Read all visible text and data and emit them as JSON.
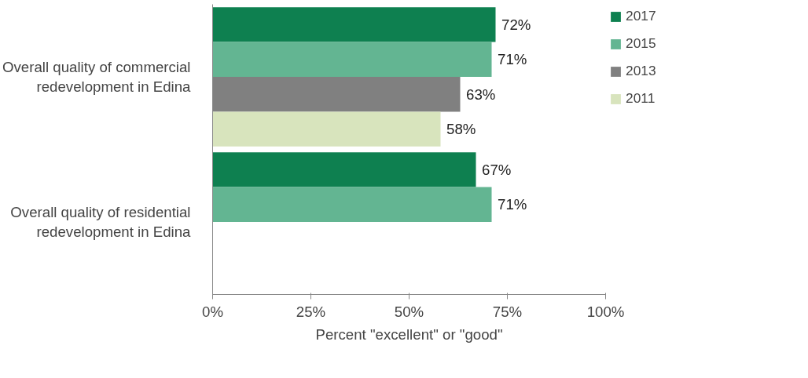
{
  "chart_data": {
    "type": "bar",
    "orientation": "horizontal",
    "categories": [
      "Overall quality of commercial redevelopment in Edina",
      "Overall quality of residential redevelopment in Edina"
    ],
    "series": [
      {
        "name": "2017",
        "color": "#0e8050",
        "values": [
          72,
          67
        ],
        "value_labels": [
          "72%",
          "67%"
        ]
      },
      {
        "name": "2015",
        "color": "#63b592",
        "values": [
          71,
          71
        ],
        "value_labels": [
          "71%",
          "71%"
        ]
      },
      {
        "name": "2013",
        "color": "#808080",
        "values": [
          63,
          null
        ],
        "value_labels": [
          "63%",
          null
        ]
      },
      {
        "name": "2011",
        "color": "#d8e4bd",
        "values": [
          58,
          null
        ],
        "value_labels": [
          "58%",
          null
        ]
      }
    ],
    "xlabel": "Percent \"excellent\" or \"good\"",
    "xlim": [
      0,
      100
    ],
    "xticks": [
      {
        "value": 0,
        "label": "0%"
      },
      {
        "value": 25,
        "label": "25%"
      },
      {
        "value": 50,
        "label": "50%"
      },
      {
        "value": 75,
        "label": "75%"
      },
      {
        "value": 100,
        "label": "100%"
      }
    ],
    "grid": false,
    "legend": "right"
  }
}
